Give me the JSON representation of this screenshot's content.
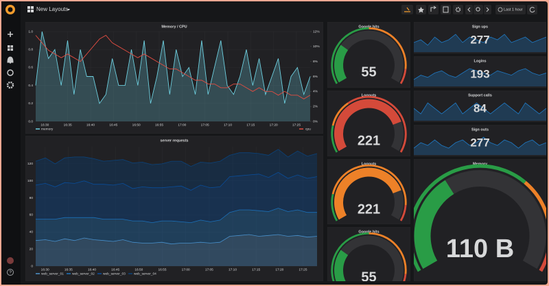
{
  "header": {
    "title": "New Layouts",
    "time_range": "Last 1 hour"
  },
  "chart_data": [
    {
      "type": "line",
      "title": "Memory / CPU",
      "xticks": [
        "16:30",
        "16:35",
        "16:40",
        "16:45",
        "16:50",
        "16:55",
        "17:00",
        "17:05",
        "17:10",
        "17:15",
        "17:20",
        "17:25"
      ],
      "ylim": [
        0,
        1
      ],
      "yticks": [
        {
          "value": 0,
          "label": "0.0"
        },
        {
          "value": 0.2,
          "label": "0.2"
        },
        {
          "value": 0.4,
          "label": "0.4"
        },
        {
          "value": 0.6,
          "label": "0.6"
        },
        {
          "value": 0.8,
          "label": "0.8"
        },
        {
          "value": 1,
          "label": "1.0"
        }
      ],
      "y2lim": [
        0,
        12
      ],
      "y2ticks": [
        {
          "value": 0,
          "label": "0%"
        },
        {
          "value": 2,
          "label": "2%"
        },
        {
          "value": 4,
          "label": "4%"
        },
        {
          "value": 6,
          "label": "6%"
        },
        {
          "value": 8,
          "label": "8%"
        },
        {
          "value": 10,
          "label": "10%"
        },
        {
          "value": 12,
          "label": "12%"
        }
      ],
      "grid": true,
      "legend": "bottom",
      "series": [
        {
          "name": "memory",
          "color": "#6ed0e0",
          "fill": true,
          "values": [
            0.4,
            1.0,
            0.7,
            0.8,
            0.4,
            0.9,
            0.3,
            0.8,
            0.5,
            0.5,
            0.2,
            0.3,
            0.7,
            0.4,
            0.4,
            0.8,
            0.4,
            0.9,
            0.2,
            0.5,
            0.9,
            0.3,
            0.8,
            0.5,
            0.6,
            0.3,
            0.9,
            0.3,
            0.6,
            0.9,
            0.4,
            0.3,
            0.5,
            0.8,
            0.4,
            0.7,
            0.3,
            0.5,
            0.7,
            0.2,
            0.5,
            0.6,
            0.3,
            0.5
          ]
        },
        {
          "name": "cpu",
          "color": "#e24d42",
          "axis": "y2",
          "fill": false,
          "values": [
            11.5,
            10.5,
            9.5,
            9,
            8.5,
            9,
            8.5,
            8,
            9,
            10,
            11,
            11.5,
            10.5,
            10,
            9.5,
            9,
            8.5,
            9,
            8.5,
            8,
            7.5,
            7,
            7,
            6.5,
            6,
            5.5,
            5.5,
            5,
            5,
            4.5,
            4.5,
            5,
            5,
            4.5,
            4,
            4.5,
            4,
            4,
            3.5,
            4,
            3.5,
            3.5,
            3,
            3.5
          ]
        }
      ]
    },
    {
      "type": "stacked_area",
      "title": "server requests",
      "xticks": [
        "16:30",
        "16:35",
        "16:40",
        "16:45",
        "16:50",
        "16:55",
        "17:00",
        "17:05",
        "17:10",
        "17:15",
        "17:20",
        "17:25"
      ],
      "ylim": [
        0,
        140
      ],
      "yticks": [
        0,
        20,
        40,
        60,
        80,
        100,
        120
      ],
      "grid": true,
      "legend": "bottom",
      "series": [
        {
          "name": "web_server_01",
          "color": "#5195ce",
          "values": [
            30,
            31,
            29,
            32,
            30,
            33,
            31,
            30,
            29,
            31,
            28,
            27,
            27,
            28,
            26,
            27,
            27,
            28,
            27,
            28,
            35,
            36,
            37,
            35,
            36,
            37,
            35,
            36,
            34,
            35
          ]
        },
        {
          "name": "web_server_02",
          "color": "#1f78c1",
          "values": [
            25,
            24,
            26,
            25,
            27,
            24,
            26,
            25,
            26,
            24,
            25,
            26,
            24,
            25,
            27,
            25,
            24,
            26,
            25,
            26,
            28,
            30,
            29,
            30,
            28,
            31,
            29,
            30,
            29,
            28
          ]
        },
        {
          "name": "web_server_03",
          "color": "#0a50a1",
          "values": [
            40,
            42,
            38,
            41,
            40,
            43,
            39,
            41,
            40,
            42,
            38,
            40,
            41,
            39,
            40,
            42,
            38,
            41,
            40,
            39,
            42,
            40,
            41,
            43,
            40,
            42,
            39,
            41,
            40,
            42
          ]
        },
        {
          "name": "web_server_04",
          "color": "#0a437c",
          "values": [
            28,
            30,
            27,
            29,
            31,
            28,
            30,
            27,
            29,
            28,
            30,
            29,
            27,
            28,
            30,
            29,
            28,
            27,
            29,
            30,
            25,
            27,
            26,
            24,
            26,
            27,
            25,
            28,
            26,
            27
          ]
        }
      ]
    },
    {
      "type": "gauge",
      "title": "Google hits",
      "value": 55,
      "min": 0,
      "max": 200,
      "thresholds": [
        100,
        180
      ],
      "colors": [
        "#299c46",
        "#ed8128",
        "#d44a3a"
      ]
    },
    {
      "type": "gauge",
      "title": "Logouts",
      "value": 221,
      "min": 0,
      "max": 280,
      "thresholds": [
        50,
        100
      ],
      "colors": [
        "#299c46",
        "#ed8128",
        "#d44a3a"
      ]
    },
    {
      "type": "gauge",
      "title": "Logouts",
      "value": 221,
      "min": 0,
      "max": 280,
      "thresholds": [
        50,
        250
      ],
      "colors": [
        "#299c46",
        "#ed8128",
        "#d44a3a"
      ]
    },
    {
      "type": "gauge",
      "title": "Google hits",
      "value": 55,
      "min": 0,
      "max": 200,
      "thresholds": [
        100,
        180
      ],
      "colors": [
        "#299c46",
        "#ed8128",
        "#d44a3a"
      ]
    },
    {
      "type": "stat",
      "title": "Sign ups",
      "value": 277,
      "color": "#299c46",
      "spark_color": "#1f78c1",
      "values": [
        22,
        23,
        21,
        24,
        22,
        23,
        25,
        22,
        24,
        23,
        22,
        24,
        23,
        25,
        22,
        23,
        24,
        22,
        23,
        24
      ]
    },
    {
      "type": "stat",
      "title": "Logins",
      "value": 193,
      "color": "#ed8128",
      "spark_color": "#1f78c1",
      "values": [
        20,
        22,
        21,
        23,
        24,
        22,
        21,
        23,
        25,
        24,
        23,
        22,
        24,
        23,
        22,
        24,
        25,
        23,
        22,
        23
      ]
    },
    {
      "type": "stat",
      "title": "Support calls",
      "value": 84,
      "color": "#d44a3a",
      "spark_color": "#1f78c1",
      "values": [
        23,
        22,
        24,
        23,
        22,
        23,
        24,
        22,
        23,
        24,
        23,
        22,
        23,
        24,
        23,
        22,
        24,
        23,
        22,
        23
      ]
    },
    {
      "type": "stat",
      "title": "Sign outs",
      "value": 277,
      "color": "#299c46",
      "spark_color": "#1f78c1",
      "values": [
        21,
        23,
        22,
        24,
        22,
        21,
        23,
        24,
        22,
        23,
        25,
        23,
        22,
        24,
        23,
        21,
        23,
        24,
        22,
        23
      ]
    },
    {
      "type": "gauge",
      "title": "Memory",
      "value": 110,
      "value_label": "110 B",
      "min": 0,
      "max": 300,
      "thresholds": [
        200,
        280
      ],
      "colors": [
        "#299c46",
        "#ed8128",
        "#d44a3a"
      ]
    }
  ]
}
